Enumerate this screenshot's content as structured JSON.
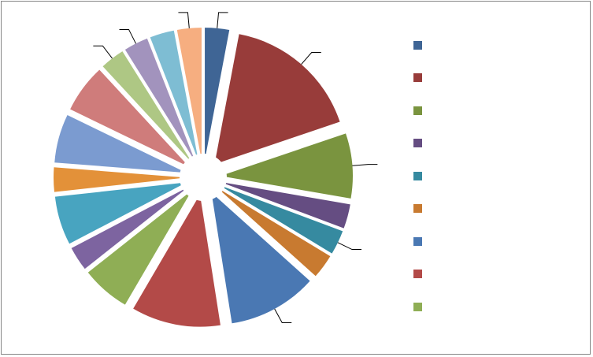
{
  "chart_data": {
    "type": "pie",
    "exploded": true,
    "title": "",
    "series": [
      {
        "values": [
          3,
          17,
          8,
          3,
          3,
          3,
          11,
          11,
          6,
          3,
          6,
          3,
          6,
          6,
          3,
          3,
          3,
          3
        ],
        "colors": [
          "#3f6595",
          "#983c3a",
          "#7a943f",
          "#654d82",
          "#368aa0",
          "#c87a30",
          "#4a78b3",
          "#b34a48",
          "#8fae55",
          "#7d64a0",
          "#48a4c0",
          "#e39139",
          "#7b9bd0",
          "#cf7c7b",
          "#aec784",
          "#a293bd",
          "#7ebdd3",
          "#f6ae80"
        ]
      }
    ],
    "legend": {
      "position": "right",
      "visible_entries": 9,
      "colors": [
        "#3f6595",
        "#983c3a",
        "#7a943f",
        "#654d82",
        "#368aa0",
        "#c87a30",
        "#4a78b3",
        "#b34a48",
        "#8fae55"
      ]
    }
  }
}
